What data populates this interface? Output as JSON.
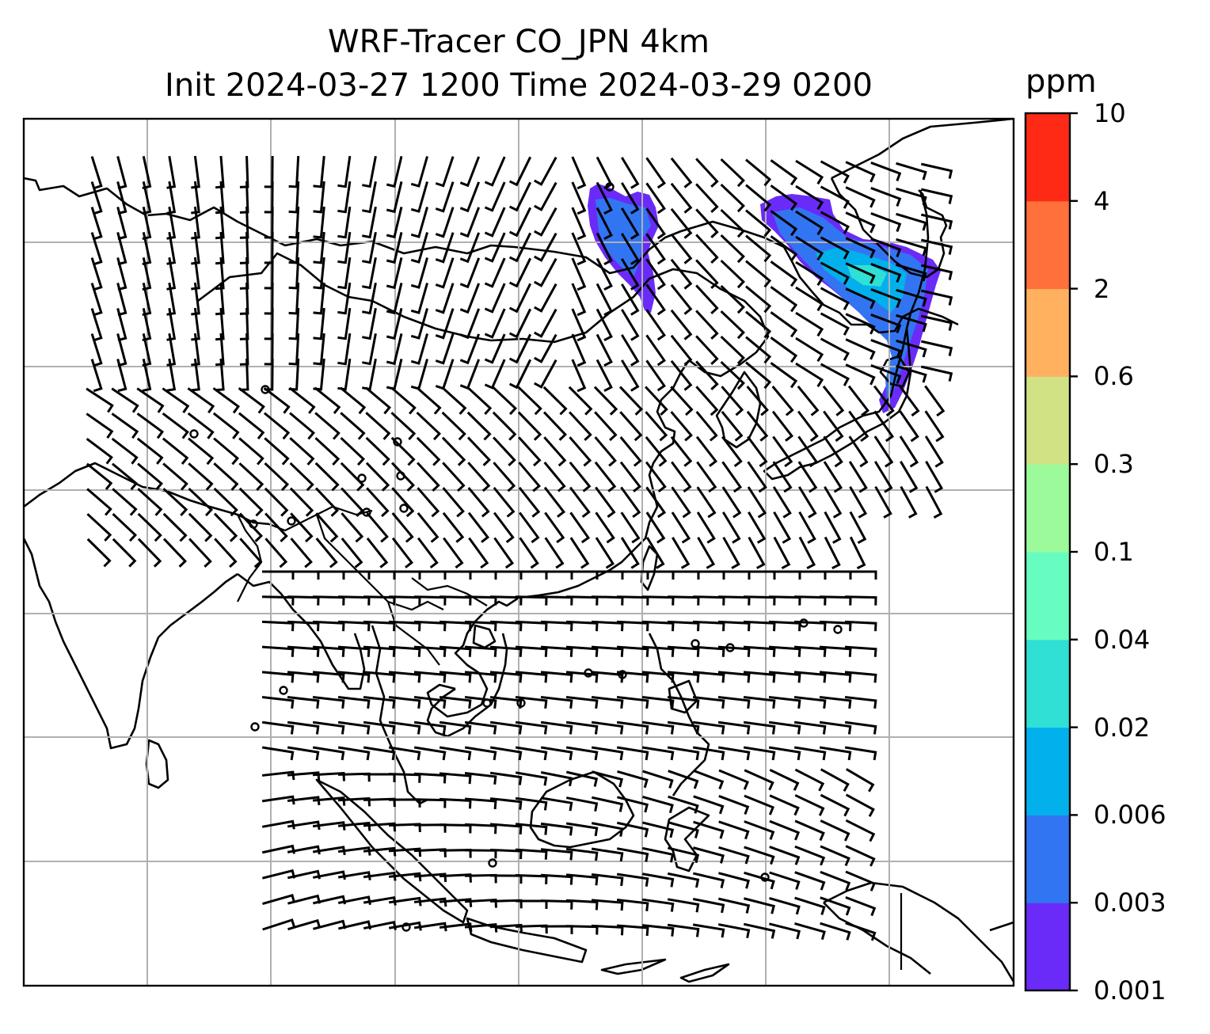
{
  "title": {
    "line1": "WRF-Tracer CO_JPN 4km",
    "line2": "Init 2024-03-27 1200 Time 2024-03-29 0200"
  },
  "colorbar": {
    "unit": "ppm",
    "levels": [
      "0.001",
      "0.003",
      "0.006",
      "0.02",
      "0.04",
      "0.1",
      "0.3",
      "0.6",
      "2",
      "4",
      "10"
    ],
    "colors": [
      "#6a2bf8",
      "#3275f2",
      "#02b1ec",
      "#30e0d4",
      "#68fdc0",
      "#9cfa9a",
      "#d0e284",
      "#ffb160",
      "#ff703a",
      "#ff2a16"
    ]
  },
  "map": {
    "gridlines": true,
    "features": [
      "coastlines",
      "country-borders",
      "wind-barbs",
      "co-tracer-shading"
    ]
  }
}
